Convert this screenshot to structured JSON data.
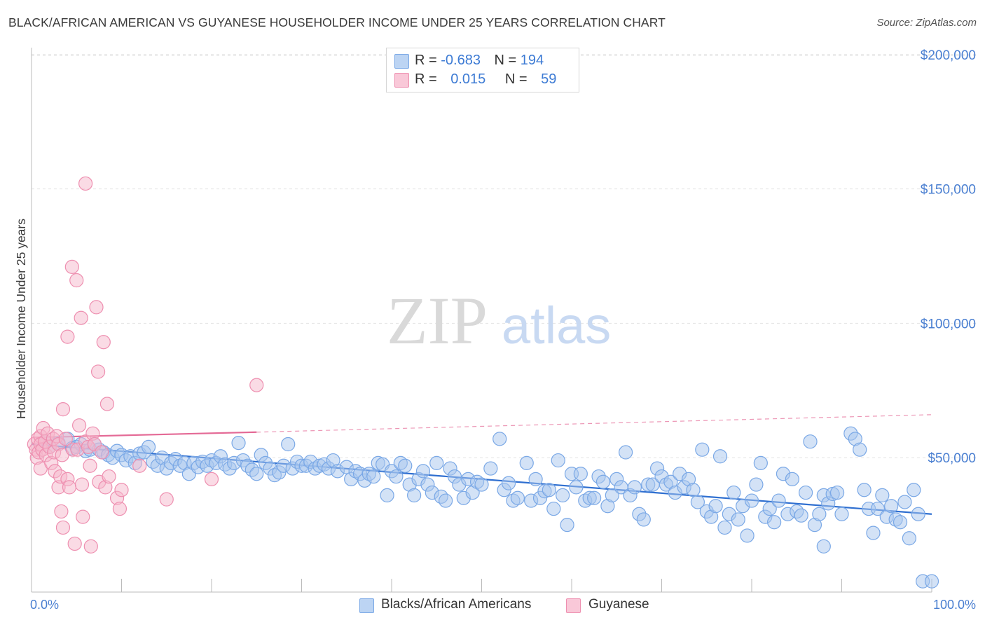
{
  "title": "BLACK/AFRICAN AMERICAN VS GUYANESE HOUSEHOLDER INCOME UNDER 25 YEARS CORRELATION CHART",
  "source": "Source: ZipAtlas.com",
  "watermark": {
    "zip": "ZIP",
    "atlas": "atlas"
  },
  "legend": {
    "rows": [
      {
        "r_label": "R =",
        "r_value": "-0.683",
        "n_label": "N =",
        "n_value": "194",
        "color": "#a8c6ee"
      },
      {
        "r_label": "R =",
        "r_value": "0.015",
        "n_label": "N =",
        "n_value": "59",
        "color": "#f6b8cc"
      }
    ]
  },
  "chart_data": {
    "type": "scatter",
    "title": "BLACK/AFRICAN AMERICAN VS GUYANESE HOUSEHOLDER INCOME UNDER 25 YEARS CORRELATION CHART",
    "xlabel": "",
    "ylabel": "Householder Income Under 25 years",
    "x_tick_labels": [
      "0.0%",
      "100.0%"
    ],
    "y_tick_labels": [
      "$50,000",
      "$100,000",
      "$150,000",
      "$200,000"
    ],
    "y_ticks": [
      50000,
      100000,
      150000,
      200000
    ],
    "xlim": [
      0,
      100
    ],
    "ylim": [
      0,
      205000
    ],
    "grid": true,
    "legend_position": "top-center",
    "series": [
      {
        "name": "Blacks/African Americans",
        "color": "#7aa8e6",
        "fill": "#a8c6ee",
        "trend": {
          "x": [
            0,
            100
          ],
          "y": [
            55000,
            29000
          ],
          "style": "solid",
          "color": "#2f6fd0"
        },
        "points": [
          [
            1.5,
            56000
          ],
          [
            2,
            54000
          ],
          [
            3,
            55500
          ],
          [
            4,
            57000
          ],
          [
            4.5,
            53500
          ],
          [
            5,
            54000
          ],
          [
            5.5,
            55000
          ],
          [
            6,
            52500
          ],
          [
            6.5,
            53000
          ],
          [
            7,
            55000
          ],
          [
            7.5,
            53000
          ],
          [
            8,
            52000
          ],
          [
            8.5,
            51000
          ],
          [
            9,
            50000
          ],
          [
            9.5,
            52500
          ],
          [
            10,
            51000
          ],
          [
            10.5,
            49000
          ],
          [
            11,
            50500
          ],
          [
            11.5,
            48000
          ],
          [
            12,
            51500
          ],
          [
            12.5,
            52000
          ],
          [
            13,
            54000
          ],
          [
            13.5,
            48500
          ],
          [
            14,
            47000
          ],
          [
            14.5,
            50000
          ],
          [
            15,
            46000
          ],
          [
            15.5,
            48000
          ],
          [
            16,
            49500
          ],
          [
            16.5,
            47000
          ],
          [
            17,
            48000
          ],
          [
            17.5,
            44000
          ],
          [
            18,
            48000
          ],
          [
            18.5,
            46500
          ],
          [
            19,
            48500
          ],
          [
            19.5,
            47000
          ],
          [
            20,
            49000
          ],
          [
            20.5,
            48000
          ],
          [
            21,
            50500
          ],
          [
            21.5,
            47500
          ],
          [
            22,
            46000
          ],
          [
            22.5,
            48000
          ],
          [
            23,
            55500
          ],
          [
            23.5,
            49000
          ],
          [
            24,
            47000
          ],
          [
            24.5,
            45500
          ],
          [
            25,
            44000
          ],
          [
            25.5,
            51000
          ],
          [
            26,
            48000
          ],
          [
            26.5,
            46000
          ],
          [
            27,
            43500
          ],
          [
            27.5,
            44500
          ],
          [
            28,
            47000
          ],
          [
            28.5,
            55000
          ],
          [
            29,
            46000
          ],
          [
            29.5,
            48500
          ],
          [
            30,
            47000
          ],
          [
            30.5,
            47000
          ],
          [
            31,
            48500
          ],
          [
            31.5,
            46000
          ],
          [
            32,
            47000
          ],
          [
            32.5,
            47500
          ],
          [
            33,
            46000
          ],
          [
            33.5,
            49000
          ],
          [
            34,
            45000
          ],
          [
            35,
            46500
          ],
          [
            35.5,
            42000
          ],
          [
            36,
            45000
          ],
          [
            36.5,
            44000
          ],
          [
            37,
            41500
          ],
          [
            37.5,
            44000
          ],
          [
            38,
            43000
          ],
          [
            38.5,
            48000
          ],
          [
            39,
            47500
          ],
          [
            39.5,
            36000
          ],
          [
            40,
            45000
          ],
          [
            40.5,
            43000
          ],
          [
            41,
            48000
          ],
          [
            41.5,
            47000
          ],
          [
            42,
            40000
          ],
          [
            42.5,
            36000
          ],
          [
            43,
            42000
          ],
          [
            43.5,
            45000
          ],
          [
            44,
            40000
          ],
          [
            44.5,
            37000
          ],
          [
            45,
            48000
          ],
          [
            45.5,
            35500
          ],
          [
            46,
            34000
          ],
          [
            46.5,
            46000
          ],
          [
            47,
            43000
          ],
          [
            47.5,
            40000
          ],
          [
            48,
            35000
          ],
          [
            48.5,
            42000
          ],
          [
            49,
            37000
          ],
          [
            49.5,
            41000
          ],
          [
            50,
            40000
          ],
          [
            51,
            46000
          ],
          [
            52,
            57000
          ],
          [
            52.5,
            38000
          ],
          [
            53,
            40500
          ],
          [
            53.5,
            34000
          ],
          [
            54,
            35000
          ],
          [
            55,
            48000
          ],
          [
            55.5,
            34000
          ],
          [
            56,
            42000
          ],
          [
            56.5,
            35000
          ],
          [
            57,
            37500
          ],
          [
            57.5,
            38000
          ],
          [
            58,
            31000
          ],
          [
            58.5,
            49000
          ],
          [
            59,
            36000
          ],
          [
            59.5,
            25000
          ],
          [
            60,
            44000
          ],
          [
            60.5,
            39000
          ],
          [
            61,
            44000
          ],
          [
            61.5,
            34000
          ],
          [
            62,
            35000
          ],
          [
            62.5,
            35000
          ],
          [
            63,
            43000
          ],
          [
            63.5,
            41000
          ],
          [
            64,
            32000
          ],
          [
            64.5,
            36000
          ],
          [
            65,
            42000
          ],
          [
            65.5,
            39000
          ],
          [
            66,
            52000
          ],
          [
            66.5,
            36000
          ],
          [
            67,
            39000
          ],
          [
            67.5,
            29000
          ],
          [
            68,
            27000
          ],
          [
            68.5,
            40000
          ],
          [
            69,
            40000
          ],
          [
            69.5,
            46000
          ],
          [
            70,
            43000
          ],
          [
            70.5,
            40000
          ],
          [
            71,
            41000
          ],
          [
            71.5,
            37000
          ],
          [
            72,
            44000
          ],
          [
            72.5,
            39000
          ],
          [
            73,
            42000
          ],
          [
            73.5,
            38000
          ],
          [
            74,
            33500
          ],
          [
            74.5,
            53000
          ],
          [
            75,
            30000
          ],
          [
            75.5,
            28000
          ],
          [
            76,
            32000
          ],
          [
            76.5,
            50500
          ],
          [
            77,
            24000
          ],
          [
            77.5,
            29000
          ],
          [
            78,
            37000
          ],
          [
            78.5,
            27000
          ],
          [
            79,
            32000
          ],
          [
            79.5,
            21000
          ],
          [
            80,
            34000
          ],
          [
            80.5,
            40000
          ],
          [
            81,
            48000
          ],
          [
            81.5,
            28000
          ],
          [
            82,
            31000
          ],
          [
            82.5,
            26000
          ],
          [
            83,
            34000
          ],
          [
            83.5,
            44000
          ],
          [
            84,
            29000
          ],
          [
            84.5,
            42000
          ],
          [
            85,
            30000
          ],
          [
            85.5,
            28500
          ],
          [
            86,
            37000
          ],
          [
            86.5,
            56000
          ],
          [
            87,
            25000
          ],
          [
            87.5,
            29000
          ],
          [
            88,
            36000
          ],
          [
            88.5,
            33000
          ],
          [
            89,
            36500
          ],
          [
            89.5,
            37000
          ],
          [
            90,
            29000
          ],
          [
            91,
            59000
          ],
          [
            91.5,
            57000
          ],
          [
            92,
            53000
          ],
          [
            92.5,
            38000
          ],
          [
            93,
            31000
          ],
          [
            93.5,
            22000
          ],
          [
            94,
            31000
          ],
          [
            94.5,
            36000
          ],
          [
            95,
            28000
          ],
          [
            95.5,
            32000
          ],
          [
            96,
            27000
          ],
          [
            96.5,
            26000
          ],
          [
            97,
            33500
          ],
          [
            97.5,
            20000
          ],
          [
            98,
            38000
          ],
          [
            98.5,
            29000
          ],
          [
            99,
            4000
          ],
          [
            100,
            4000
          ],
          [
            88,
            17000
          ]
        ]
      },
      {
        "name": "Guyanese",
        "color": "#ee8fb0",
        "fill": "#f6b8cc",
        "trend": {
          "x": [
            0,
            25
          ],
          "y": [
            57500,
            59500
          ],
          "x_dashed_end": 100,
          "y_dashed_end": 66000,
          "style": "solid-then-dashed",
          "color": "#e46a96"
        },
        "points": [
          [
            0.3,
            55000
          ],
          [
            0.5,
            53000
          ],
          [
            0.6,
            50000
          ],
          [
            0.7,
            57000
          ],
          [
            0.8,
            52000
          ],
          [
            1,
            58000
          ],
          [
            1,
            55000
          ],
          [
            1,
            46000
          ],
          [
            1.2,
            53000
          ],
          [
            1.3,
            61000
          ],
          [
            1.5,
            56000
          ],
          [
            1.6,
            51000
          ],
          [
            1.8,
            59000
          ],
          [
            2,
            54000
          ],
          [
            2.2,
            48000
          ],
          [
            2.4,
            57000
          ],
          [
            2.5,
            52000
          ],
          [
            2.6,
            45000
          ],
          [
            2.8,
            58000
          ],
          [
            3,
            55000
          ],
          [
            3,
            39000
          ],
          [
            3.2,
            43000
          ],
          [
            3.3,
            30000
          ],
          [
            3.4,
            51000
          ],
          [
            3.5,
            24000
          ],
          [
            3.5,
            68000
          ],
          [
            3.8,
            57000
          ],
          [
            4,
            42000
          ],
          [
            4,
            95000
          ],
          [
            4.2,
            39000
          ],
          [
            4.5,
            121000
          ],
          [
            4.6,
            53000
          ],
          [
            4.8,
            18000
          ],
          [
            5,
            116000
          ],
          [
            5.1,
            53000
          ],
          [
            5.3,
            62000
          ],
          [
            5.5,
            102000
          ],
          [
            5.6,
            40000
          ],
          [
            5.7,
            28000
          ],
          [
            6,
            56000
          ],
          [
            6,
            152000
          ],
          [
            6.3,
            54000
          ],
          [
            6.5,
            47000
          ],
          [
            6.6,
            17000
          ],
          [
            6.8,
            59000
          ],
          [
            7,
            55000
          ],
          [
            7.2,
            106000
          ],
          [
            7.4,
            82000
          ],
          [
            7.5,
            41000
          ],
          [
            7.8,
            52000
          ],
          [
            8,
            93000
          ],
          [
            8.2,
            39000
          ],
          [
            8.4,
            70000
          ],
          [
            8.6,
            43000
          ],
          [
            9.5,
            35000
          ],
          [
            9.8,
            31000
          ],
          [
            10,
            38000
          ],
          [
            12,
            47000
          ],
          [
            15,
            34500
          ],
          [
            20,
            42000
          ],
          [
            25,
            77000
          ]
        ]
      }
    ]
  },
  "bottom_legend": {
    "items": [
      {
        "label": "Blacks/African Americans",
        "color": "#a8c6ee",
        "border": "#7aa8e6"
      },
      {
        "label": "Guyanese",
        "color": "#f6b8cc",
        "border": "#ee8fb0"
      }
    ]
  }
}
